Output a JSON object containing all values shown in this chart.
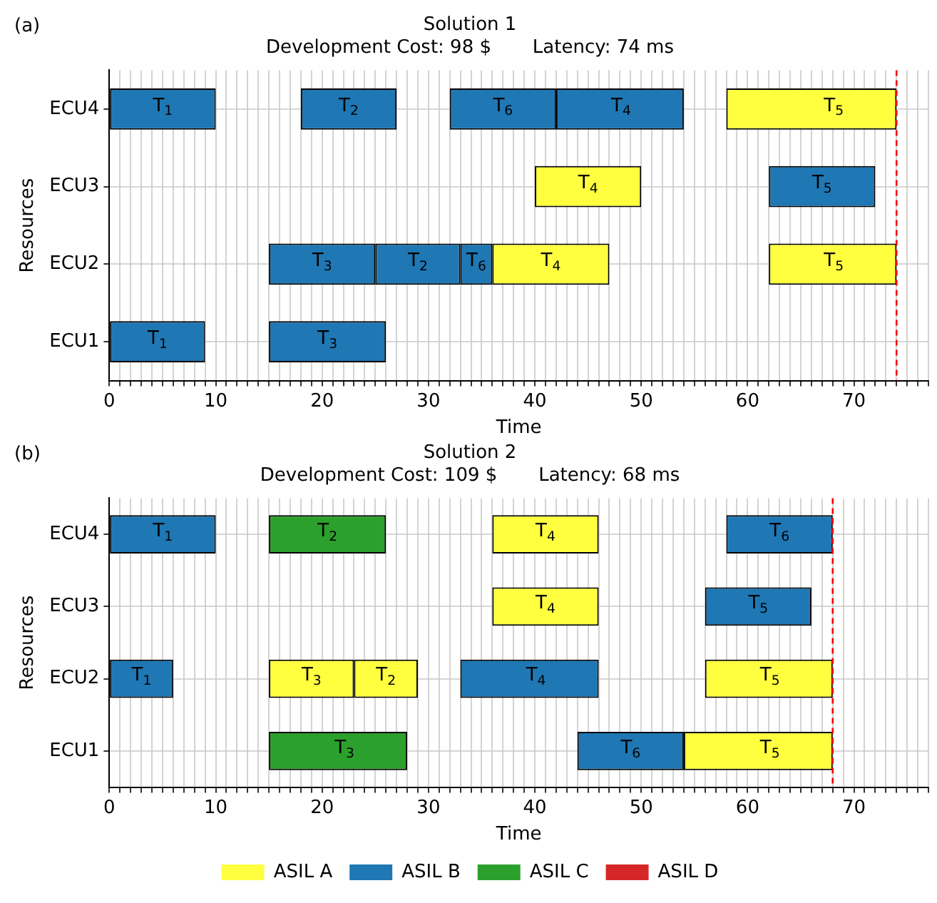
{
  "chart_data": [
    {
      "type": "bar",
      "orientation": "horizontal",
      "title": "Solution 1",
      "subtitle": "Development Cost: 98 $       Latency: 74 ms",
      "xlabel": "Time",
      "ylabel": "Resources",
      "annotations": [
        "(a)",
        {
          "text": "T$_{1}$",
          "x": 10,
          "y": "ECU4"
        },
        {
          "text": "T$_{2}$",
          "x": 27,
          "y": "ECU4"
        },
        {
          "text": "T$_{6}$",
          "x": 42,
          "y": "ECU4"
        },
        {
          "text": "T$_{4}$",
          "x": 54,
          "y": "ECU4"
        },
        {
          "text": "T$_{5}$",
          "x": 74,
          "y": "ECU4"
        },
        {
          "text": "T$_{4}$",
          "x": 50,
          "y": "ECU3"
        },
        {
          "text": "T$_{5}$",
          "x": 72,
          "y": "ECU3"
        },
        {
          "text": "T$_{3}$",
          "x": 25,
          "y": "ECU2"
        },
        {
          "text": "T$_{2}$",
          "x": 33,
          "y": "ECU2"
        },
        {
          "text": "T$_{6}$",
          "x": 36,
          "y": "ECU2"
        },
        {
          "text": "T$_{4}$",
          "x": 47,
          "y": "ECU2"
        },
        {
          "text": "T$_{5}$",
          "x": 74,
          "y": "ECU2"
        },
        {
          "text": "T$_{1}$",
          "x": 9,
          "y": "ECU1"
        },
        {
          "text": "T$_{3}$",
          "x": 26,
          "y": "ECU1"
        }
      ],
      "categories": [
        "ECU4",
        "ECU3",
        "ECU2",
        "ECU1"
      ],
      "series": [
        {
          "color": "#1f77b4",
          "values": [
            10,
            10,
            10,
            9
          ],
          "base": [
            0,
            62,
            15,
            0
          ]
        },
        {
          "color": "#1f77b4",
          "values": [
            9,
            null,
            8,
            11
          ],
          "base": [
            18,
            null,
            25,
            15
          ]
        },
        {
          "color": "#1f77b4",
          "values": [
            10,
            null,
            3,
            null
          ],
          "base": [
            32,
            null,
            33,
            null
          ]
        },
        {
          "color": "#1f77b4",
          "values": [
            12,
            null,
            null,
            null
          ],
          "base": [
            42,
            null,
            null,
            null
          ]
        },
        {
          "color": "#ffff40",
          "values": [
            16,
            10,
            11,
            null
          ],
          "base": [
            58,
            40,
            36,
            null
          ]
        },
        {
          "color": "#ffff40",
          "values": [
            null,
            null,
            12,
            null
          ],
          "base": [
            null,
            null,
            62,
            null
          ]
        }
      ],
      "xlim": [
        0,
        77
      ],
      "xticks": [
        0,
        {
          "value": 1,
          "label": null
        },
        {
          "value": 2,
          "label": null
        },
        {
          "value": 3,
          "label": null
        },
        {
          "value": 4,
          "label": null
        },
        {
          "value": 5,
          "label": null
        },
        {
          "value": 6,
          "label": null
        },
        {
          "value": 7,
          "label": null
        },
        {
          "value": 8,
          "label": null
        },
        {
          "value": 9,
          "label": null
        },
        10,
        {
          "value": 11,
          "label": null
        },
        {
          "value": 12,
          "label": null
        },
        {
          "value": 13,
          "label": null
        },
        {
          "value": 14,
          "label": null
        },
        {
          "value": 15,
          "label": null
        },
        {
          "value": 16,
          "label": null
        },
        {
          "value": 17,
          "label": null
        },
        {
          "value": 18,
          "label": null
        },
        {
          "value": 19,
          "label": null
        },
        20,
        {
          "value": 21,
          "label": null
        },
        {
          "value": 22,
          "label": null
        },
        {
          "value": 23,
          "label": null
        },
        {
          "value": 24,
          "label": null
        },
        {
          "value": 25,
          "label": null
        },
        {
          "value": 26,
          "label": null
        },
        {
          "value": 27,
          "label": null
        },
        {
          "value": 28,
          "label": null
        },
        {
          "value": 29,
          "label": null
        },
        30,
        {
          "value": 31,
          "label": null
        },
        {
          "value": 32,
          "label": null
        },
        {
          "value": 33,
          "label": null
        },
        {
          "value": 34,
          "label": null
        },
        {
          "value": 35,
          "label": null
        },
        {
          "value": 36,
          "label": null
        },
        {
          "value": 37,
          "label": null
        },
        {
          "value": 38,
          "label": null
        },
        {
          "value": 39,
          "label": null
        },
        40,
        {
          "value": 41,
          "label": null
        },
        {
          "value": 42,
          "label": null
        },
        {
          "value": 43,
          "label": null
        },
        {
          "value": 44,
          "label": null
        },
        {
          "value": 45,
          "label": null
        },
        {
          "value": 46,
          "label": null
        },
        {
          "value": 47,
          "label": null
        },
        {
          "value": 48,
          "label": null
        },
        {
          "value": 49,
          "label": null
        },
        50,
        {
          "value": 51,
          "label": null
        },
        {
          "value": 52,
          "label": null
        },
        {
          "value": 53,
          "label": null
        },
        {
          "value": 54,
          "label": null
        },
        {
          "value": 55,
          "label": null
        },
        {
          "value": 56,
          "label": null
        },
        {
          "value": 57,
          "label": null
        },
        {
          "value": 58,
          "label": null
        },
        {
          "value": 59,
          "label": null
        },
        60,
        {
          "value": 61,
          "label": null
        },
        {
          "value": 62,
          "label": null
        },
        {
          "value": 63,
          "label": null
        },
        {
          "value": 64,
          "label": null
        },
        {
          "value": 65,
          "label": null
        },
        {
          "value": 66,
          "label": null
        },
        {
          "value": 67,
          "label": null
        },
        {
          "value": 68,
          "label": null
        },
        {
          "value": 69,
          "label": null
        },
        70,
        {
          "value": 71,
          "label": null
        },
        {
          "value": 72,
          "label": null
        },
        {
          "value": 73,
          "label": null
        },
        {
          "value": 74,
          "label": null
        },
        {
          "value": 75,
          "label": null
        },
        {
          "value": 76,
          "label": null
        },
        {
          "value": 77,
          "label": null
        }
      ],
      "ref_lines": [
        {
          "axis": "x",
          "value": 74,
          "color": "#ff0000",
          "line_style": "dashed"
        }
      ],
      "grid": true,
      "legend": false
    },
    {
      "type": "bar",
      "orientation": "horizontal",
      "title": "Solution 2",
      "subtitle": "Development Cost: 109 $       Latency: 68 ms",
      "xlabel": "Time",
      "ylabel": "Resources",
      "annotations": [
        "(b)",
        {
          "text": "T$_{1}$",
          "x": 10,
          "y": "ECU4"
        },
        {
          "text": "T$_{2}$",
          "x": 26,
          "y": "ECU4"
        },
        {
          "text": "T$_{4}$",
          "x": 46,
          "y": "ECU4"
        },
        {
          "text": "T$_{6}$",
          "x": 68,
          "y": "ECU4"
        },
        {
          "text": "T$_{4}$",
          "x": 46,
          "y": "ECU3"
        },
        {
          "text": "T$_{5}$",
          "x": 66,
          "y": "ECU3"
        },
        {
          "text": "T$_{1}$",
          "x": 6,
          "y": "ECU2"
        },
        {
          "text": "T$_{3}$",
          "x": 23,
          "y": "ECU2"
        },
        {
          "text": "T$_{2}$",
          "x": 29,
          "y": "ECU2"
        },
        {
          "text": "T$_{4}$",
          "x": 46,
          "y": "ECU2"
        },
        {
          "text": "T$_{5}$",
          "x": 68,
          "y": "ECU2"
        },
        {
          "text": "T$_{3}$",
          "x": 28,
          "y": "ECU1"
        },
        {
          "text": "T$_{6}$",
          "x": 54,
          "y": "ECU1"
        },
        {
          "text": "T$_{5}$",
          "x": 68,
          "y": "ECU1"
        }
      ],
      "categories": [
        "ECU4",
        "ECU3",
        "ECU2",
        "ECU1"
      ],
      "series": [
        {
          "name": "ASIL A",
          "color": "#ffff40",
          "values": [
            10,
            10,
            8,
            14
          ],
          "base": [
            36,
            36,
            15,
            54
          ]
        },
        {
          "name": "ASIL B",
          "color": "#1f77b4",
          "values": [
            10,
            10,
            6,
            10
          ],
          "base": [
            0,
            56,
            0,
            44
          ]
        },
        {
          "name": "ASIL C",
          "color": "#2ca02c",
          "values": [
            11,
            null,
            null,
            13
          ],
          "base": [
            15,
            null,
            null,
            15
          ]
        },
        {
          "name": "ASIL D",
          "color": "#d62728",
          "values": [
            null,
            null,
            null,
            null
          ],
          "base": [
            null,
            null,
            null,
            null
          ]
        },
        {
          "color": "#1f77b4",
          "values": [
            10,
            null,
            13,
            null
          ],
          "base": [
            58,
            null,
            33,
            null
          ]
        },
        {
          "color": "#ffff40",
          "values": [
            null,
            null,
            6,
            null
          ],
          "base": [
            null,
            null,
            23,
            null
          ]
        },
        {
          "color": "#ffff40",
          "values": [
            null,
            null,
            12,
            null
          ],
          "base": [
            null,
            null,
            56,
            null
          ]
        }
      ],
      "xlim": [
        0,
        77
      ],
      "xticks": [
        0,
        {
          "value": 1,
          "label": null
        },
        {
          "value": 2,
          "label": null
        },
        {
          "value": 3,
          "label": null
        },
        {
          "value": 4,
          "label": null
        },
        {
          "value": 5,
          "label": null
        },
        {
          "value": 6,
          "label": null
        },
        {
          "value": 7,
          "label": null
        },
        {
          "value": 8,
          "label": null
        },
        {
          "value": 9,
          "label": null
        },
        10,
        {
          "value": 11,
          "label": null
        },
        {
          "value": 12,
          "label": null
        },
        {
          "value": 13,
          "label": null
        },
        {
          "value": 14,
          "label": null
        },
        {
          "value": 15,
          "label": null
        },
        {
          "value": 16,
          "label": null
        },
        {
          "value": 17,
          "label": null
        },
        {
          "value": 18,
          "label": null
        },
        {
          "value": 19,
          "label": null
        },
        20,
        {
          "value": 21,
          "label": null
        },
        {
          "value": 22,
          "label": null
        },
        {
          "value": 23,
          "label": null
        },
        {
          "value": 24,
          "label": null
        },
        {
          "value": 25,
          "label": null
        },
        {
          "value": 26,
          "label": null
        },
        {
          "value": 27,
          "label": null
        },
        {
          "value": 28,
          "label": null
        },
        {
          "value": 29,
          "label": null
        },
        30,
        {
          "value": 31,
          "label": null
        },
        {
          "value": 32,
          "label": null
        },
        {
          "value": 33,
          "label": null
        },
        {
          "value": 34,
          "label": null
        },
        {
          "value": 35,
          "label": null
        },
        {
          "value": 36,
          "label": null
        },
        {
          "value": 37,
          "label": null
        },
        {
          "value": 38,
          "label": null
        },
        {
          "value": 39,
          "label": null
        },
        40,
        {
          "value": 41,
          "label": null
        },
        {
          "value": 42,
          "label": null
        },
        {
          "value": 43,
          "label": null
        },
        {
          "value": 44,
          "label": null
        },
        {
          "value": 45,
          "label": null
        },
        {
          "value": 46,
          "label": null
        },
        {
          "value": 47,
          "label": null
        },
        {
          "value": 48,
          "label": null
        },
        {
          "value": 49,
          "label": null
        },
        50,
        {
          "value": 51,
          "label": null
        },
        {
          "value": 52,
          "label": null
        },
        {
          "value": 53,
          "label": null
        },
        {
          "value": 54,
          "label": null
        },
        {
          "value": 55,
          "label": null
        },
        {
          "value": 56,
          "label": null
        },
        {
          "value": 57,
          "label": null
        },
        {
          "value": 58,
          "label": null
        },
        {
          "value": 59,
          "label": null
        },
        60,
        {
          "value": 61,
          "label": null
        },
        {
          "value": 62,
          "label": null
        },
        {
          "value": 63,
          "label": null
        },
        {
          "value": 64,
          "label": null
        },
        {
          "value": 65,
          "label": null
        },
        {
          "value": 66,
          "label": null
        },
        {
          "value": 67,
          "label": null
        },
        {
          "value": 68,
          "label": null
        },
        {
          "value": 69,
          "label": null
        },
        70,
        {
          "value": 71,
          "label": null
        },
        {
          "value": 72,
          "label": null
        },
        {
          "value": 73,
          "label": null
        },
        {
          "value": 74,
          "label": null
        },
        {
          "value": 75,
          "label": null
        },
        {
          "value": 76,
          "label": null
        },
        {
          "value": 77,
          "label": null
        }
      ],
      "ref_lines": [
        {
          "axis": "x",
          "value": 68,
          "color": "#ff0000",
          "line_style": "dashed"
        }
      ],
      "grid": true,
      "legend": "bottom"
    }
  ]
}
